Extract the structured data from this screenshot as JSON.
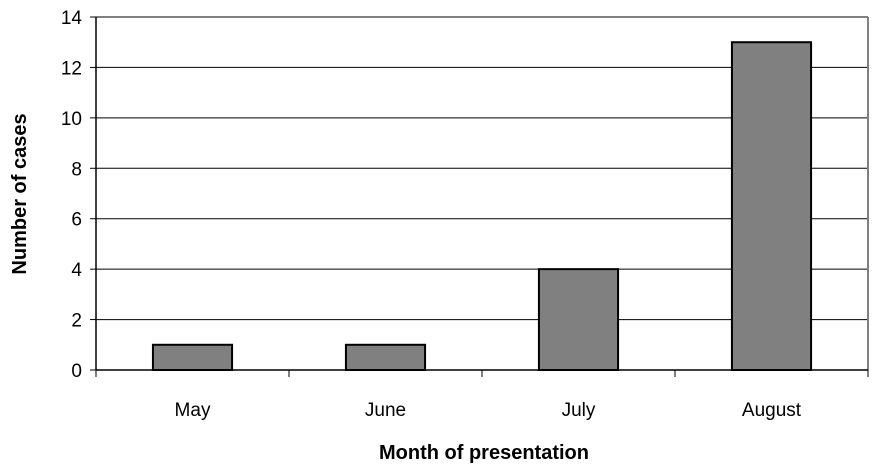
{
  "chart_data": {
    "type": "bar",
    "categories": [
      "May",
      "June",
      "July",
      "August"
    ],
    "values": [
      1,
      1,
      4,
      13
    ],
    "title": "",
    "xlabel": "Month of presentation",
    "ylabel": "Number of cases",
    "ylim": [
      0,
      14
    ],
    "yticks": [
      "0",
      "2",
      "4",
      "6",
      "8",
      "10",
      "12",
      "14"
    ],
    "grid": true,
    "legend": "none",
    "colors": {
      "bar_fill": "#808080",
      "bar_stroke": "#000000",
      "grid": "#000000",
      "plot_border": "#808080"
    }
  }
}
